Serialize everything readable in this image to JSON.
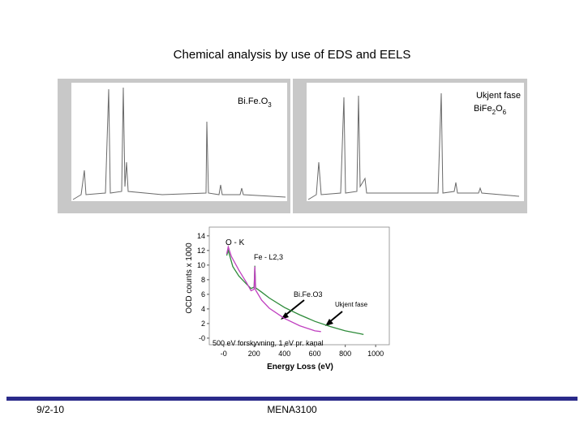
{
  "title": "Chemical analysis by use of EDS and EELS",
  "eds_left": {
    "formula": [
      "Bi.Fe.O",
      "3"
    ]
  },
  "eds_right": {
    "label": "Ukjent fase",
    "formula": [
      "BiFe",
      "2",
      "O",
      "6"
    ]
  },
  "chart_data": {
    "type": "line",
    "ylabel": "OCD counts x 1000",
    "xlabel": "Energy Loss (eV)",
    "xlim": [
      -95,
      1090
    ],
    "ylim": [
      -0.9,
      15.2
    ],
    "xticks": [
      {
        "value": 0,
        "label": "-0"
      },
      200,
      400,
      600,
      800,
      1000
    ],
    "yticks": [
      {
        "value": 0,
        "label": "-0"
      },
      2,
      4,
      6,
      8,
      10,
      12,
      14
    ],
    "series": [
      {
        "color": "#2e8b3a",
        "x": [
          20,
          30,
          60,
          100,
          150,
          180,
          200,
          205,
          210,
          250,
          300,
          400,
          500,
          600,
          700,
          800,
          900,
          920
        ],
        "values": [
          11.3,
          12,
          9.8,
          8.5,
          7.4,
          6.8,
          7.0,
          9.9,
          6.9,
          6.3,
          5.5,
          4.2,
          3.2,
          2.3,
          1.6,
          1.0,
          0.6,
          0.5
        ]
      },
      {
        "color": "#c040c0",
        "x": [
          20,
          30,
          50,
          100,
          150,
          180,
          200,
          205,
          210,
          250,
          300,
          400,
          500,
          600,
          640
        ],
        "values": [
          11.5,
          12.5,
          11.2,
          9.3,
          7.6,
          6.5,
          6.7,
          9.8,
          6.6,
          5.2,
          4.1,
          2.7,
          1.7,
          1.0,
          0.9
        ]
      }
    ],
    "annotations": [
      "O - K",
      "Fe - L2,3",
      "Bi.Fe.O3",
      "Ukjent fase",
      "500 eV forskyvning, 1 eV pr. kanal"
    ]
  },
  "footer": {
    "date": "9/2-10",
    "course": "MENA3100"
  }
}
